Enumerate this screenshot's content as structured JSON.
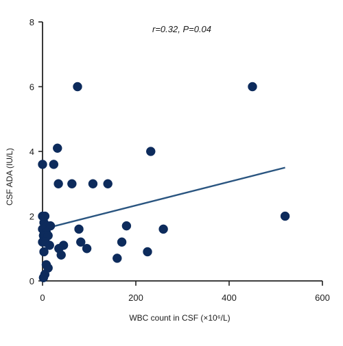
{
  "chart_data": {
    "type": "scatter",
    "title": "",
    "annotation": "r=0.32, P=0.04",
    "xlabel": "WBC count in CSF (×10⁶/L)",
    "ylabel": "CSF ADA (IU/L)",
    "xlim": [
      0,
      600
    ],
    "ylim": [
      0,
      8
    ],
    "x_ticks": [
      0,
      200,
      400,
      600
    ],
    "y_ticks": [
      0,
      2,
      4,
      6,
      8
    ],
    "grid": false,
    "colors": {
      "points": "#0d2b5c",
      "fit_line": "#2a5580",
      "axes": "#222222"
    },
    "points": [
      {
        "x": 75,
        "y": 6.0
      },
      {
        "x": 450,
        "y": 6.0
      },
      {
        "x": 32,
        "y": 4.1
      },
      {
        "x": 232,
        "y": 4.0
      },
      {
        "x": 0,
        "y": 3.6
      },
      {
        "x": 24,
        "y": 3.6
      },
      {
        "x": 34,
        "y": 3.0
      },
      {
        "x": 63,
        "y": 3.0
      },
      {
        "x": 108,
        "y": 3.0
      },
      {
        "x": 140,
        "y": 3.0
      },
      {
        "x": 0,
        "y": 2.0
      },
      {
        "x": 5,
        "y": 2.0
      },
      {
        "x": 520,
        "y": 2.0
      },
      {
        "x": 3,
        "y": 1.8
      },
      {
        "x": 10,
        "y": 1.7
      },
      {
        "x": 17,
        "y": 1.7
      },
      {
        "x": 180,
        "y": 1.7
      },
      {
        "x": 0,
        "y": 1.6
      },
      {
        "x": 8,
        "y": 1.5
      },
      {
        "x": 78,
        "y": 1.6
      },
      {
        "x": 259,
        "y": 1.6
      },
      {
        "x": 2,
        "y": 1.4
      },
      {
        "x": 12,
        "y": 1.4
      },
      {
        "x": 0,
        "y": 1.2
      },
      {
        "x": 6,
        "y": 1.2
      },
      {
        "x": 82,
        "y": 1.2
      },
      {
        "x": 170,
        "y": 1.2
      },
      {
        "x": 15,
        "y": 1.1
      },
      {
        "x": 45,
        "y": 1.1
      },
      {
        "x": 35,
        "y": 1.0
      },
      {
        "x": 95,
        "y": 1.0
      },
      {
        "x": 3,
        "y": 0.9
      },
      {
        "x": 225,
        "y": 0.9
      },
      {
        "x": 40,
        "y": 0.8
      },
      {
        "x": 160,
        "y": 0.7
      },
      {
        "x": 8,
        "y": 0.5
      },
      {
        "x": 12,
        "y": 0.4
      },
      {
        "x": 5,
        "y": 0.2
      },
      {
        "x": 2,
        "y": 0.1
      }
    ],
    "fit_line": {
      "x": [
        0,
        520
      ],
      "y": [
        1.6,
        3.5
      ]
    }
  }
}
